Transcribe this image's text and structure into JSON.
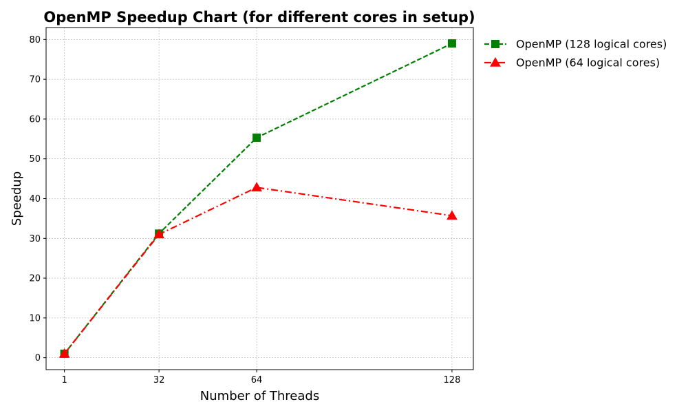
{
  "chart_data": {
    "type": "line",
    "title": "OpenMP Speedup Chart (for different cores in setup)",
    "xlabel": "Number of Threads",
    "ylabel": "Speedup",
    "x": [
      1,
      32,
      64,
      128
    ],
    "x_tick_labels": [
      "1",
      "32",
      "64",
      "128"
    ],
    "xlim": [
      -5,
      135
    ],
    "ylim": [
      -3,
      83
    ],
    "y_ticks": [
      0,
      10,
      20,
      30,
      40,
      50,
      60,
      70,
      80
    ],
    "grid": true,
    "legend_position": "outside-top-right",
    "series": [
      {
        "name": "OpenMP (128 logical cores)",
        "values": [
          1.0,
          31.2,
          55.3,
          79.0
        ],
        "color": "#008000",
        "line_style": "dashed",
        "marker": "square"
      },
      {
        "name": "OpenMP (64 logical cores)",
        "values": [
          1.0,
          31.0,
          42.8,
          35.7
        ],
        "color": "#ff0000",
        "line_style": "dash-dot",
        "marker": "triangle"
      }
    ]
  }
}
